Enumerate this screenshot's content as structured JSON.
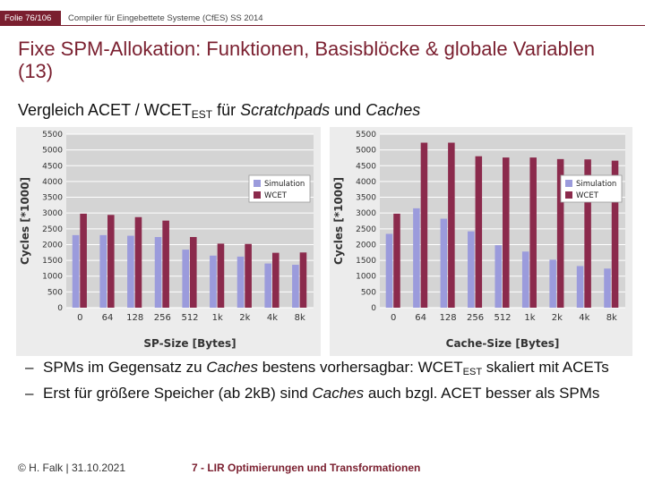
{
  "header": {
    "slide_number": "Folie 76/106",
    "course": "Compiler für Eingebettete Systeme (CfES) SS 2014"
  },
  "title": "Fixe SPM-Allokation: Funktionen, Basisblöcke & globale Variablen (13)",
  "subtitle": {
    "prefix": "Vergleich ACET / WCET",
    "sub": "EST",
    "middle": " für ",
    "italic1": "Scratchpads",
    "and": " und ",
    "italic2": "Caches"
  },
  "bullets": [
    {
      "dash": "–",
      "text_a": "SPMs im Gegensatz zu ",
      "italic": "Caches",
      "text_b": " bestens vorhersagbar: WCET",
      "sub": "EST",
      "text_c": " skaliert mit ACETs"
    },
    {
      "dash": "–",
      "text_a": "Erst für größere Speicher (ab 2kB) sind ",
      "italic": "Caches",
      "text_b": " auch bzgl. ACET besser als SPMs"
    }
  ],
  "footer": {
    "author_date": "© H. Falk | 31.10.2021",
    "chapter": "7 - LIR Optimierungen und Transformationen"
  },
  "colors": {
    "accent": "#7a1f2f",
    "simulation": "#9b9bdc",
    "wcet": "#8b2a4c",
    "plot_bg": "#d4d4d4",
    "grid": "#ffffff"
  },
  "chart_data": [
    {
      "type": "bar",
      "categories": [
        "0",
        "64",
        "128",
        "256",
        "512",
        "1k",
        "2k",
        "4k",
        "8k"
      ],
      "series": [
        {
          "name": "Simulation",
          "values": [
            2300,
            2300,
            2280,
            2240,
            1840,
            1650,
            1620,
            1400,
            1360
          ]
        },
        {
          "name": "WCET",
          "values": [
            2980,
            2940,
            2870,
            2760,
            2240,
            2030,
            2020,
            1740,
            1750
          ]
        }
      ],
      "xlabel": "SP-Size [Bytes]",
      "ylabel": "Cycles [*1000]",
      "ylim": [
        0,
        5500
      ],
      "yticks": [
        0,
        500,
        1000,
        1500,
        2000,
        2500,
        3000,
        3500,
        4000,
        4500,
        5000,
        5500
      ],
      "grid": true,
      "legend": "top-right"
    },
    {
      "type": "bar",
      "categories": [
        "0",
        "64",
        "128",
        "256",
        "512",
        "1k",
        "2k",
        "4k",
        "8k"
      ],
      "series": [
        {
          "name": "Simulation",
          "values": [
            2340,
            3150,
            2820,
            2420,
            1980,
            1780,
            1520,
            1320,
            1240
          ]
        },
        {
          "name": "WCET",
          "values": [
            2980,
            5230,
            5230,
            4800,
            4760,
            4760,
            4710,
            4700,
            4660
          ]
        }
      ],
      "xlabel": "Cache-Size [Bytes]",
      "ylabel": "Cycles [*1000]",
      "ylim": [
        0,
        5500
      ],
      "yticks": [
        0,
        500,
        1000,
        1500,
        2000,
        2500,
        3000,
        3500,
        4000,
        4500,
        5000,
        5500
      ],
      "grid": true,
      "legend": "top-right"
    }
  ]
}
